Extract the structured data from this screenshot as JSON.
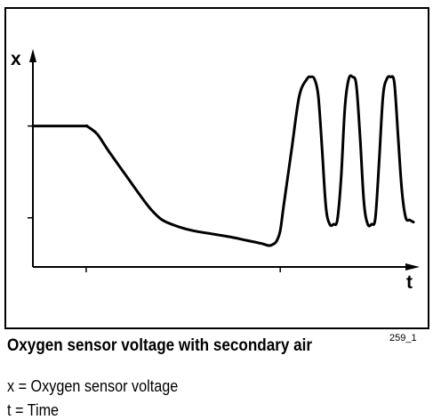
{
  "figure_number": "259_1",
  "caption": {
    "title": "Oxygen sensor voltage with secondary air"
  },
  "legend": [
    {
      "symbol": "x",
      "description": "x = Oxygen sensor voltage"
    },
    {
      "symbol": "t",
      "description": "t = Time"
    }
  ],
  "chart_data": {
    "type": "line",
    "xlabel": "t",
    "ylabel": "x",
    "xlim": [
      0,
      100
    ],
    "ylim": [
      0,
      100
    ],
    "grid": false,
    "x_ticks": [
      14,
      65
    ],
    "y_ticks": [
      23,
      66
    ],
    "series": [
      {
        "x": [
          0,
          13,
          14,
          15,
          17,
          20,
          24,
          28,
          31,
          34,
          38,
          42,
          47,
          52,
          56,
          60,
          62,
          63,
          64,
          65,
          66,
          68,
          70,
          72,
          73,
          74,
          75,
          76,
          77,
          78,
          79,
          80,
          81,
          82,
          83,
          84,
          85,
          86,
          87,
          88,
          89,
          90,
          91,
          92,
          93,
          94,
          95,
          96,
          97,
          98,
          99,
          100
        ],
        "y": [
          66,
          66,
          66,
          65,
          62,
          54,
          44,
          34,
          27,
          22,
          19,
          17,
          15.5,
          14,
          12.5,
          11,
          10,
          10.5,
          12,
          17,
          30,
          55,
          80,
          88,
          89,
          88,
          80,
          55,
          28,
          20,
          20,
          22,
          42,
          75,
          88,
          89,
          85,
          60,
          30,
          20,
          20,
          23,
          50,
          80,
          88,
          89,
          86,
          60,
          35,
          23,
          22,
          21
        ]
      }
    ]
  }
}
